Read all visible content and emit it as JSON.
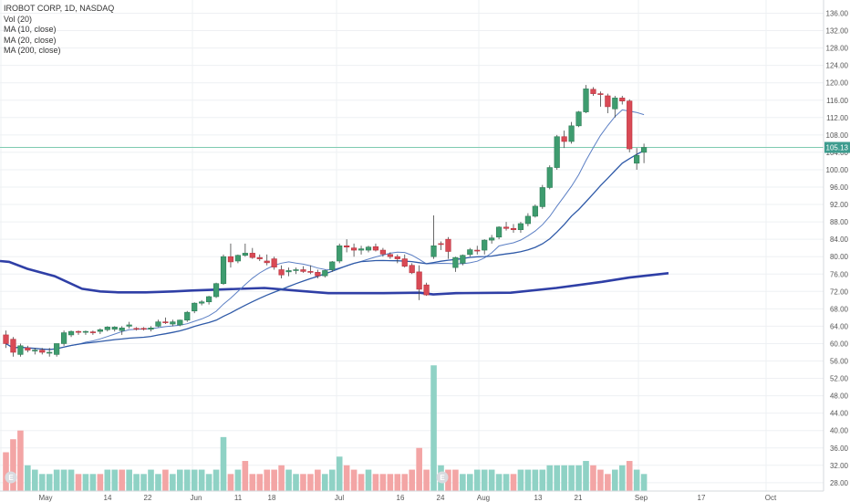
{
  "legend": {
    "title": "IROBOT CORP, 1D, NASDAQ",
    "vol": "Vol (20)",
    "ma10": "MA (10, close)",
    "ma20": "MA (20, close)",
    "ma200": "MA (200, close)"
  },
  "colors": {
    "up": "#53b987",
    "down": "#eb4d5c",
    "up_fill": "#3e9c6f",
    "down_fill": "#d94a55",
    "vol_up": "#8fd2c5",
    "vol_down": "#f3a5a5",
    "ma_short": "#2f5aa8",
    "ma200": "#2f3fa6",
    "price_line": "#7fcbb1",
    "grid": "#eef0f3",
    "axis_text": "#555555"
  },
  "chart_data": {
    "type": "candlestick",
    "title": "IROBOT CORP, 1D, NASDAQ",
    "ylim": [
      26,
      138
    ],
    "y_ticks": [
      "28.00",
      "32.00",
      "36.00",
      "40.00",
      "44.00",
      "48.00",
      "52.00",
      "56.00",
      "60.00",
      "64.00",
      "68.00",
      "72.00",
      "76.00",
      "80.00",
      "84.00",
      "88.00",
      "92.00",
      "96.00",
      "100.00",
      "104.00",
      "108.00",
      "112.00",
      "116.00",
      "120.00",
      "124.00",
      "128.00",
      "132.00",
      "136.00"
    ],
    "x_labels": [
      "May",
      "14",
      "22",
      "Jun",
      "11",
      "18",
      "Jul",
      "16",
      "24",
      "Aug",
      "13",
      "21",
      "Sep",
      "17",
      "Oct"
    ],
    "last_price": "105.13",
    "earnings_marker": "E",
    "ohlc": [
      [
        62,
        63,
        59,
        60
      ],
      [
        61,
        61.5,
        57,
        58
      ],
      [
        57.5,
        60,
        57,
        59.5
      ],
      [
        59,
        59.5,
        58,
        58.5
      ],
      [
        58.5,
        59,
        57.5,
        58.5
      ],
      [
        58.5,
        59,
        57.5,
        58
      ],
      [
        58,
        59,
        57,
        58
      ],
      [
        57.5,
        60,
        57,
        60
      ],
      [
        60,
        63,
        59.5,
        62.5
      ],
      [
        62,
        63,
        61.5,
        62.8
      ],
      [
        62.8,
        63,
        62,
        62.6
      ],
      [
        62.6,
        63,
        62,
        62.8
      ],
      [
        62.7,
        63,
        62,
        62.5
      ],
      [
        62.8,
        63.5,
        62.2,
        63.2
      ],
      [
        63.2,
        64,
        62.8,
        63.8
      ],
      [
        63.3,
        64,
        62.8,
        63.8
      ],
      [
        63,
        64,
        62,
        63.6
      ],
      [
        64,
        65,
        63.5,
        64.3
      ],
      [
        63.5,
        63.8,
        63,
        63.4
      ],
      [
        63.5,
        63.8,
        63,
        63.4
      ],
      [
        63.3,
        64,
        62.8,
        63.6
      ],
      [
        64,
        65.5,
        63.8,
        65
      ],
      [
        65,
        66,
        64.5,
        64.8
      ],
      [
        64.5,
        65.5,
        64,
        65
      ],
      [
        64.3,
        65.5,
        64,
        65.4
      ],
      [
        65.4,
        67.5,
        65,
        67.2
      ],
      [
        67.5,
        69.5,
        67,
        69.3
      ],
      [
        69.3,
        70,
        68.8,
        69.6
      ],
      [
        69.6,
        71,
        69,
        70.8
      ],
      [
        70.8,
        74,
        70.5,
        73.8
      ],
      [
        73.8,
        80.5,
        73.5,
        80
      ],
      [
        80,
        83,
        77.5,
        78.8
      ],
      [
        79,
        80.5,
        78.5,
        80.3
      ],
      [
        80.3,
        83,
        80,
        80.8
      ],
      [
        80.8,
        82,
        79.5,
        79.8
      ],
      [
        79.8,
        80.5,
        79,
        79.5
      ],
      [
        79,
        80.5,
        78,
        78.6
      ],
      [
        79.5,
        80,
        77,
        77.6
      ],
      [
        77,
        78,
        75,
        75.8
      ],
      [
        76.5,
        77.5,
        75.5,
        76.8
      ],
      [
        76.8,
        77.5,
        76,
        77
      ],
      [
        77,
        77.8,
        76.3,
        76.6
      ],
      [
        76.6,
        78,
        76,
        76.4
      ],
      [
        76.4,
        77,
        75,
        75.6
      ],
      [
        75.6,
        77,
        75.2,
        76.8
      ],
      [
        77,
        79,
        76.5,
        78.8
      ],
      [
        79,
        83,
        78.5,
        82.5
      ],
      [
        82.5,
        84,
        81,
        82.2
      ],
      [
        82,
        83,
        80,
        81.5
      ],
      [
        81.5,
        82.5,
        80.5,
        81.8
      ],
      [
        81.5,
        82.5,
        81,
        82.2
      ],
      [
        82.3,
        83,
        81.2,
        81.5
      ],
      [
        81.5,
        82,
        80,
        80.6
      ],
      [
        80.5,
        81,
        79.5,
        80
      ],
      [
        80,
        80.5,
        78.5,
        79.5
      ],
      [
        79.5,
        80.5,
        77.5,
        77.8
      ],
      [
        78,
        78.5,
        76,
        76.3
      ],
      [
        76.5,
        78,
        70,
        72.5
      ],
      [
        73.5,
        74,
        71,
        71.2
      ],
      [
        80,
        89.5,
        79.5,
        82.5
      ],
      [
        83,
        83.5,
        81.5,
        82.8
      ],
      [
        84,
        84.5,
        79.5,
        81.2
      ],
      [
        77.5,
        80,
        76.5,
        79.8
      ],
      [
        78.5,
        80.5,
        78,
        80.3
      ],
      [
        80.5,
        82,
        80,
        81.6
      ],
      [
        81.5,
        82.5,
        80.5,
        81.4
      ],
      [
        81.5,
        84,
        80.5,
        83.8
      ],
      [
        83.8,
        85,
        83,
        84.3
      ],
      [
        84.5,
        87,
        84,
        86.8
      ],
      [
        86.8,
        88,
        86,
        86.5
      ],
      [
        86.5,
        87.5,
        85.5,
        86.2
      ],
      [
        86.2,
        88,
        85.5,
        87.6
      ],
      [
        87.6,
        90,
        87,
        89.3
      ],
      [
        89.3,
        92,
        89,
        91.6
      ],
      [
        91.5,
        96.5,
        91,
        95.9
      ],
      [
        95.9,
        101,
        95.5,
        100.5
      ],
      [
        100.5,
        108,
        100,
        107.6
      ],
      [
        107.6,
        109,
        105,
        106.5
      ],
      [
        106.5,
        111,
        106,
        110.1
      ],
      [
        110.1,
        113.5,
        109.8,
        113.3
      ],
      [
        113.3,
        119.5,
        113,
        118.6
      ],
      [
        118.5,
        119,
        117,
        117.5
      ],
      [
        117.5,
        118,
        114.5,
        117.3
      ],
      [
        117,
        117.5,
        113,
        114.5
      ],
      [
        114,
        117,
        112,
        116.5
      ],
      [
        116.5,
        117,
        115,
        115.8
      ],
      [
        115.8,
        116.2,
        104,
        104.8
      ],
      [
        101.5,
        105,
        100,
        103.3
      ],
      [
        104,
        106,
        101.5,
        105.13
      ]
    ],
    "volume": [
      [
        35,
        1
      ],
      [
        38,
        1
      ],
      [
        40,
        1
      ],
      [
        32,
        0
      ],
      [
        31,
        0
      ],
      [
        30,
        0
      ],
      [
        30,
        0
      ],
      [
        31,
        0
      ],
      [
        31,
        0
      ],
      [
        31,
        0
      ],
      [
        30,
        1
      ],
      [
        30,
        0
      ],
      [
        30,
        0
      ],
      [
        30,
        1
      ],
      [
        31,
        0
      ],
      [
        31,
        0
      ],
      [
        31,
        1
      ],
      [
        31,
        0
      ],
      [
        30,
        0
      ],
      [
        30,
        0
      ],
      [
        31,
        0
      ],
      [
        30,
        0
      ],
      [
        31,
        1
      ],
      [
        30,
        0
      ],
      [
        31,
        0
      ],
      [
        31,
        0
      ],
      [
        31,
        0
      ],
      [
        31,
        0
      ],
      [
        30,
        0
      ],
      [
        31,
        0
      ],
      [
        38.5,
        0
      ],
      [
        30,
        1
      ],
      [
        31,
        0
      ],
      [
        33,
        1
      ],
      [
        30,
        1
      ],
      [
        30,
        1
      ],
      [
        31,
        1
      ],
      [
        31,
        1
      ],
      [
        32,
        1
      ],
      [
        31,
        0
      ],
      [
        30,
        0
      ],
      [
        30,
        1
      ],
      [
        30,
        1
      ],
      [
        31,
        1
      ],
      [
        30,
        0
      ],
      [
        31,
        0
      ],
      [
        34,
        0
      ],
      [
        32,
        1
      ],
      [
        31,
        1
      ],
      [
        30,
        1
      ],
      [
        31,
        0
      ],
      [
        30,
        1
      ],
      [
        30,
        1
      ],
      [
        30,
        1
      ],
      [
        30,
        1
      ],
      [
        30,
        1
      ],
      [
        31,
        1
      ],
      [
        36,
        1
      ],
      [
        31,
        1
      ],
      [
        55,
        0
      ],
      [
        32,
        0
      ],
      [
        31,
        1
      ],
      [
        31,
        1
      ],
      [
        30,
        0
      ],
      [
        30,
        0
      ],
      [
        31,
        0
      ],
      [
        31,
        0
      ],
      [
        31,
        0
      ],
      [
        30,
        0
      ],
      [
        30,
        0
      ],
      [
        30,
        1
      ],
      [
        31,
        0
      ],
      [
        31,
        0
      ],
      [
        31,
        0
      ],
      [
        31,
        0
      ],
      [
        32,
        0
      ],
      [
        32,
        0
      ],
      [
        32,
        0
      ],
      [
        32,
        0
      ],
      [
        32,
        0
      ],
      [
        33,
        0
      ],
      [
        32,
        1
      ],
      [
        31,
        1
      ],
      [
        30,
        1
      ],
      [
        31,
        0
      ],
      [
        32,
        0
      ],
      [
        33,
        1
      ],
      [
        31,
        0
      ],
      [
        30,
        0
      ]
    ]
  }
}
